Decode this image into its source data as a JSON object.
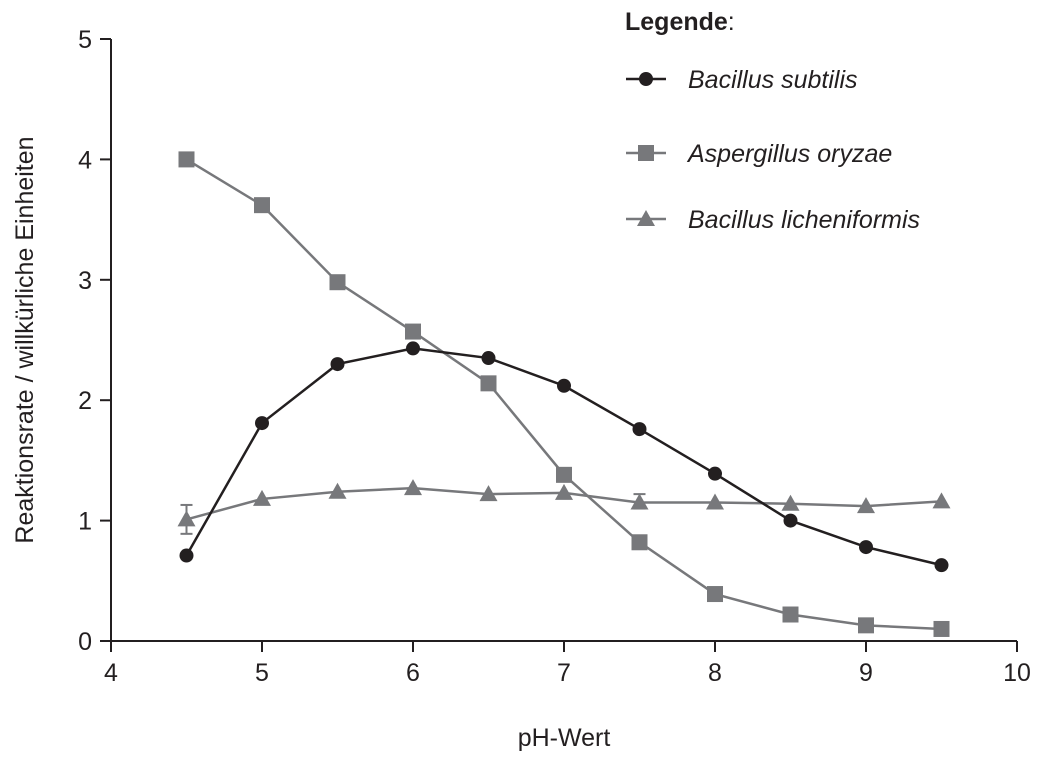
{
  "chart_data": {
    "type": "line",
    "xlabel": "pH-Wert",
    "ylabel": "Reaktionsrate / willkürliche Einheiten",
    "xlim": [
      4,
      10
    ],
    "ylim": [
      0,
      5
    ],
    "xticks": [
      "4",
      "5",
      "6",
      "7",
      "8",
      "9",
      "10"
    ],
    "yticks": [
      "0",
      "1",
      "2",
      "3",
      "4",
      "5"
    ],
    "grid": false,
    "legend": {
      "title": "Legende",
      "title_suffix": ":",
      "placement": "top-right"
    },
    "x": [
      4.5,
      5.0,
      5.5,
      6.0,
      6.5,
      7.0,
      7.5,
      8.0,
      8.5,
      9.0,
      9.5
    ],
    "series": [
      {
        "name": "Bacillus subtilis",
        "marker": "circle",
        "color": "#231f20",
        "values": [
          0.71,
          1.81,
          2.3,
          2.43,
          2.35,
          2.12,
          1.76,
          1.39,
          1.0,
          0.78,
          0.63
        ]
      },
      {
        "name": "Aspergillus oryzae",
        "marker": "square",
        "color": "#77787b",
        "values": [
          4.0,
          3.62,
          2.98,
          2.57,
          2.14,
          1.38,
          0.82,
          0.39,
          0.22,
          0.13,
          0.1
        ]
      },
      {
        "name": "Bacillus licheniformis",
        "marker": "triangle",
        "color": "#77787b",
        "values": [
          1.01,
          1.18,
          1.24,
          1.27,
          1.22,
          1.23,
          1.15,
          1.15,
          1.14,
          1.12,
          1.16
        ]
      }
    ],
    "error_bars": [
      {
        "series": 2,
        "x": 4.5,
        "low": 0.89,
        "high": 1.13
      },
      {
        "series": 2,
        "x": 7.5,
        "low": 1.1,
        "high": 1.22
      }
    ]
  }
}
